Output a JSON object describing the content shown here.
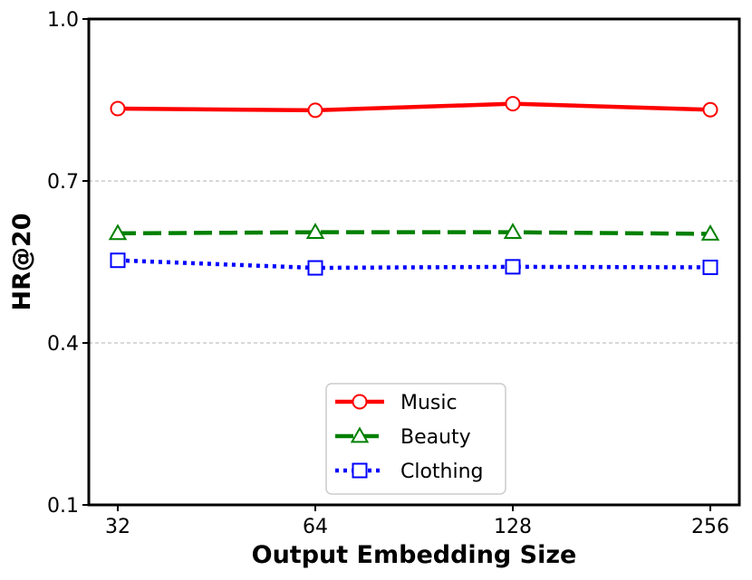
{
  "chart_data": {
    "type": "line",
    "title": "",
    "xlabel": "Output Embedding Size",
    "ylabel": "HR@20",
    "categories": [
      "32",
      "64",
      "128",
      "256"
    ],
    "ylim": [
      0.1,
      1.0
    ],
    "yticks": [
      "0.1",
      "0.4",
      "0.7",
      "1.0"
    ],
    "grid": "horizontal dashed",
    "legend_position": "bottom-center",
    "series": [
      {
        "name": "Music",
        "values": [
          0.834,
          0.831,
          0.843,
          0.832
        ],
        "color": "#ff0000",
        "marker": "circle",
        "line_style": "solid"
      },
      {
        "name": "Beauty",
        "values": [
          0.603,
          0.605,
          0.605,
          0.602
        ],
        "color": "#008000",
        "marker": "triangle",
        "line_style": "dashed"
      },
      {
        "name": "Clothing",
        "values": [
          0.553,
          0.539,
          0.541,
          0.54
        ],
        "color": "#0000ff",
        "marker": "square",
        "line_style": "dotted"
      }
    ]
  }
}
